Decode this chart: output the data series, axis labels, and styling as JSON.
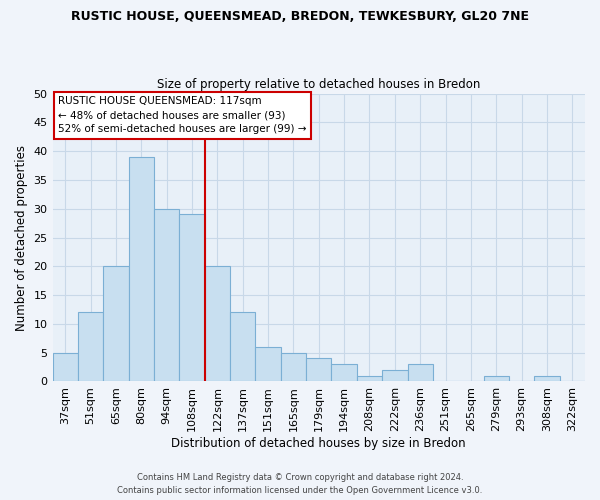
{
  "title1": "RUSTIC HOUSE, QUEENSMEAD, BREDON, TEWKESBURY, GL20 7NE",
  "title2": "Size of property relative to detached houses in Bredon",
  "xlabel": "Distribution of detached houses by size in Bredon",
  "ylabel": "Number of detached properties",
  "bar_labels": [
    "37sqm",
    "51sqm",
    "65sqm",
    "80sqm",
    "94sqm",
    "108sqm",
    "122sqm",
    "137sqm",
    "151sqm",
    "165sqm",
    "179sqm",
    "194sqm",
    "208sqm",
    "222sqm",
    "236sqm",
    "251sqm",
    "265sqm",
    "279sqm",
    "293sqm",
    "308sqm",
    "322sqm"
  ],
  "bar_heights": [
    5,
    12,
    20,
    39,
    30,
    29,
    20,
    12,
    6,
    5,
    4,
    3,
    1,
    2,
    3,
    0,
    0,
    1,
    0,
    1,
    0
  ],
  "bar_color": "#c8dff0",
  "bar_edge_color": "#7bafd4",
  "vline_x": 6,
  "vline_color": "#cc0000",
  "ylim": [
    0,
    50
  ],
  "yticks": [
    0,
    5,
    10,
    15,
    20,
    25,
    30,
    35,
    40,
    45,
    50
  ],
  "annotation_box_color": "#ffffff",
  "annotation_box_edge": "#cc0000",
  "footer1": "Contains HM Land Registry data © Crown copyright and database right 2024.",
  "footer2": "Contains public sector information licensed under the Open Government Licence v3.0.",
  "background_color": "#f0f4fa",
  "plot_bg_color": "#e8f0f8",
  "grid_color": "#c8d8e8"
}
